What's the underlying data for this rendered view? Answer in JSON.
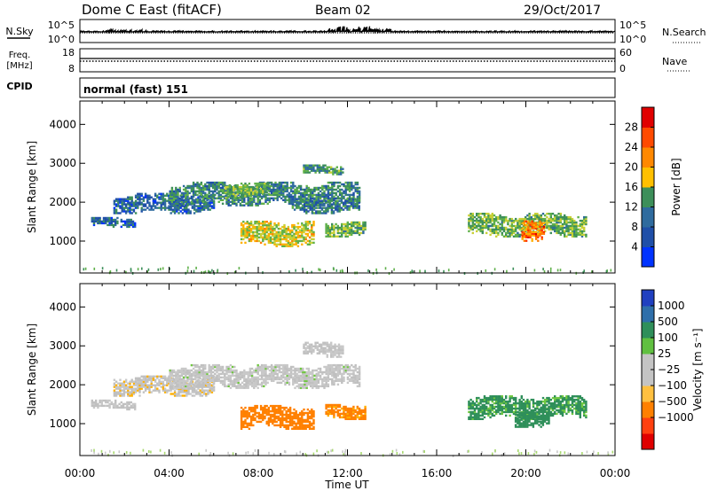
{
  "header": {
    "station": "Dome C East (fitACF)",
    "beam": "Beam 02",
    "date": "29/Oct/2017"
  },
  "panels": {
    "nsky": {
      "label": "N.Sky",
      "ytick_top": "10^5",
      "ytick_bottom": "10^0",
      "right_label": "N.Search",
      "right_tick_top": "10^5",
      "right_tick_bottom": "10^0"
    },
    "freq": {
      "label_line1": "Freq.",
      "label_line2": "[MHz]",
      "ytick_top": "18",
      "ytick_bottom": "8",
      "right_label": "Nave",
      "right_tick_top": "60",
      "right_tick_bottom": "0"
    },
    "cpid": {
      "label": "CPID",
      "text": "normal (fast) 151"
    }
  },
  "colors": {
    "power_scale": [
      "#0033ff",
      "#1f4fa8",
      "#2f6b9e",
      "#3d8f5a",
      "#5fb04a",
      "#c8d035",
      "#ffb000",
      "#ff7a00",
      "#ff3300",
      "#e00000"
    ],
    "velocity_scale": [
      "#e00000",
      "#ff3a10",
      "#ff8000",
      "#ffb000",
      "#ffd27a",
      "#c0c0c0",
      "#c8c8c8",
      "#70c840",
      "#2f8f5a",
      "#2a7a70",
      "#2f5fb0",
      "#2040c0"
    ]
  },
  "chart_data": [
    {
      "type": "heatmap",
      "title": "",
      "xlabel": "Time UT",
      "ylabel": "Slant Range [km]",
      "xticks": [
        "00:00",
        "04:00",
        "08:00",
        "12:00",
        "16:00",
        "20:00",
        "00:00"
      ],
      "xlim_hours": [
        0,
        24
      ],
      "ylim": [
        180,
        4600
      ],
      "yticks": [
        1000,
        2000,
        3000,
        4000
      ],
      "colorbar": {
        "label": "Power [dB]",
        "ticks": [
          "4",
          "8",
          "12",
          "16",
          "20",
          "24",
          "28"
        ],
        "range": [
          0,
          32
        ]
      },
      "echo_regions": [
        {
          "t": [
            0.5,
            2.5
          ],
          "range": [
            1350,
            1600
          ],
          "value": 6
        },
        {
          "t": [
            1.5,
            6.0
          ],
          "range": [
            1700,
            2200
          ],
          "value": 7
        },
        {
          "t": [
            4.0,
            12.5
          ],
          "range": [
            1900,
            2500
          ],
          "value": 10
        },
        {
          "t": [
            6.5,
            8.5
          ],
          "range": [
            2100,
            2500
          ],
          "value": 14
        },
        {
          "t": [
            7.2,
            10.5
          ],
          "range": [
            850,
            1500
          ],
          "value": 18
        },
        {
          "t": [
            10.0,
            11.8
          ],
          "range": [
            2700,
            2950
          ],
          "value": 12
        },
        {
          "t": [
            11.0,
            12.8
          ],
          "range": [
            1100,
            1500
          ],
          "value": 14
        },
        {
          "t": [
            9.5,
            12.5
          ],
          "range": [
            1700,
            2100
          ],
          "value": 9
        },
        {
          "t": [
            17.4,
            22.7
          ],
          "range": [
            1100,
            1700
          ],
          "value": 14
        },
        {
          "t": [
            19.8,
            20.8
          ],
          "range": [
            900,
            1500
          ],
          "value": 24
        }
      ]
    },
    {
      "type": "heatmap",
      "title": "",
      "xlabel": "Time UT",
      "ylabel": "Slant Range [km]",
      "xticks": [
        "00:00",
        "04:00",
        "08:00",
        "12:00",
        "16:00",
        "20:00",
        "00:00"
      ],
      "xlim_hours": [
        0,
        24
      ],
      "ylim": [
        180,
        4600
      ],
      "yticks": [
        1000,
        2000,
        3000,
        4000
      ],
      "colorbar": {
        "label": "Velocity [m s⁻¹]",
        "ticks": [
          "1000",
          "500",
          "100",
          "25",
          "−25",
          "−100",
          "−500",
          "−1000"
        ]
      },
      "echo_regions": [
        {
          "t": [
            0.5,
            2.5
          ],
          "range": [
            1350,
            1600
          ],
          "value": 0
        },
        {
          "t": [
            1.5,
            6.0
          ],
          "range": [
            1700,
            2200
          ],
          "value": -10
        },
        {
          "t": [
            4.0,
            12.5
          ],
          "range": [
            1900,
            2500
          ],
          "value": 5
        },
        {
          "t": [
            7.2,
            10.5
          ],
          "range": [
            850,
            1450
          ],
          "value": -300
        },
        {
          "t": [
            11.0,
            12.8
          ],
          "range": [
            1100,
            1500
          ],
          "value": -150
        },
        {
          "t": [
            10.0,
            11.8
          ],
          "range": [
            2700,
            3100
          ],
          "value": 0
        },
        {
          "t": [
            17.4,
            22.7
          ],
          "range": [
            1100,
            1700
          ],
          "value": 150
        },
        {
          "t": [
            19.5,
            21.0
          ],
          "range": [
            900,
            1400
          ],
          "value": 200
        }
      ]
    }
  ]
}
